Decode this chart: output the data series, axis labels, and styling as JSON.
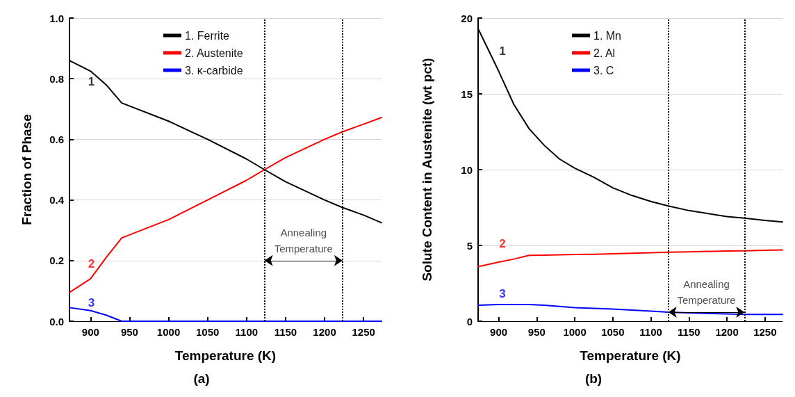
{
  "chart_data": [
    {
      "type": "line",
      "title": "(a)",
      "xlabel": "Temperature (K)",
      "ylabel": "Fraction of Phase",
      "x": [
        873,
        900,
        920,
        940,
        1000,
        1050,
        1100,
        1123,
        1150,
        1200,
        1223,
        1250,
        1273
      ],
      "series": [
        {
          "name": "1. Ferrite",
          "color": "#000000",
          "values": [
            0.86,
            0.825,
            0.78,
            0.72,
            0.66,
            0.6,
            0.535,
            0.5,
            0.46,
            0.4,
            0.375,
            0.35,
            0.325
          ]
        },
        {
          "name": "2. Austenite",
          "color": "#ff0000",
          "values": [
            0.095,
            0.14,
            0.21,
            0.275,
            0.335,
            0.4,
            0.465,
            0.5,
            0.54,
            0.6,
            0.625,
            0.65,
            0.672
          ]
        },
        {
          "name": "3. κ-carbide",
          "color": "#0000ff",
          "values": [
            0.045,
            0.035,
            0.02,
            0,
            0,
            0,
            0,
            0,
            0,
            0,
            0,
            0,
            0
          ]
        }
      ],
      "xlim": [
        873,
        1273
      ],
      "xticks": [
        900,
        950,
        1000,
        1050,
        1100,
        1150,
        1200,
        1250
      ],
      "ylim": [
        0,
        1
      ],
      "yticks": [
        {
          "value": 0,
          "label": "0.0"
        },
        0.2,
        0.4,
        0.6,
        0.8,
        {
          "value": 1,
          "label": "1.0"
        }
      ],
      "ref_lines": [
        {
          "axis": "x",
          "value": 1123,
          "line_style": "dotted",
          "color": "#000000"
        },
        {
          "axis": "x",
          "value": 1223,
          "line_style": "dotted",
          "color": "#000000"
        }
      ],
      "annotations": [
        "1",
        "2",
        "3",
        "Annealing Temperature"
      ],
      "grid": "y",
      "legend": "top",
      "line_style": "solid",
      "marker": "none"
    },
    {
      "type": "line",
      "title": "(b)",
      "xlabel": "Temperature (K)",
      "ylabel": "Solute Content in Austenite (wt pct)",
      "x": [
        873,
        900,
        920,
        940,
        960,
        980,
        1000,
        1025,
        1050,
        1075,
        1100,
        1123,
        1150,
        1200,
        1223,
        1250,
        1273
      ],
      "series": [
        {
          "name": "1. Mn",
          "color": "#000000",
          "values": [
            19.3,
            16.5,
            14.3,
            12.7,
            11.6,
            10.7,
            10.1,
            9.5,
            8.8,
            8.3,
            7.9,
            7.6,
            7.3,
            6.9,
            6.8,
            6.65,
            6.55
          ]
        },
        {
          "name": "2. Al",
          "color": "#ff0000",
          "values": [
            3.6,
            3.9,
            4.1,
            4.35,
            4.36,
            4.38,
            4.4,
            4.42,
            4.45,
            4.48,
            4.52,
            4.55,
            4.58,
            4.63,
            4.65,
            4.68,
            4.7
          ]
        },
        {
          "name": "3. C",
          "color": "#0000ff",
          "values": [
            1.05,
            1.1,
            1.1,
            1.1,
            1.05,
            0.97,
            0.9,
            0.85,
            0.8,
            0.73,
            0.66,
            0.6,
            0.55,
            0.48,
            0.45,
            0.45,
            0.45
          ]
        }
      ],
      "xlim": [
        873,
        1273
      ],
      "xticks": [
        900,
        950,
        1000,
        1050,
        1100,
        1150,
        1200,
        1250
      ],
      "ylim": [
        0,
        20
      ],
      "yticks": [
        0,
        5,
        10,
        15,
        20
      ],
      "ref_lines": [
        {
          "axis": "x",
          "value": 1123,
          "line_style": "dotted",
          "color": "#000000"
        },
        {
          "axis": "x",
          "value": 1223,
          "line_style": "dotted",
          "color": "#000000"
        }
      ],
      "annotations": [
        "1",
        "2",
        "3",
        "Annealing Temperature"
      ],
      "grid": "y",
      "legend": "top",
      "line_style": "solid",
      "marker": "none"
    }
  ]
}
